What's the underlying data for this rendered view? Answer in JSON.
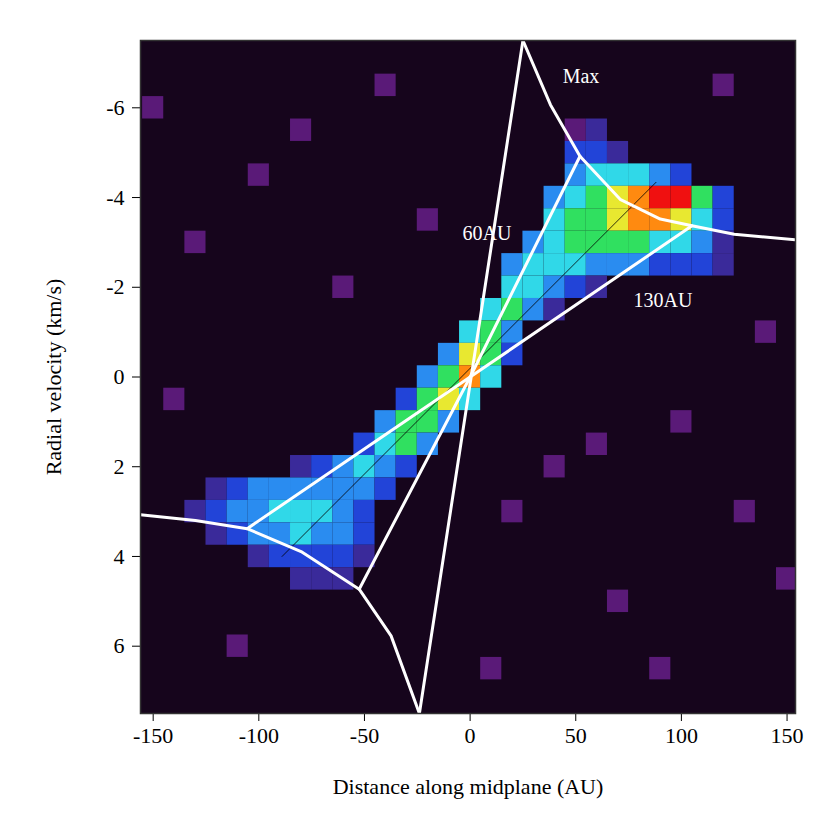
{
  "chart_data": {
    "type": "heatmap",
    "xlabel": "Distance along midplane (AU)",
    "ylabel": "Radial velocity (km/s)",
    "xlim": [
      -156,
      154
    ],
    "xticks": [
      -150,
      -100,
      -50,
      0,
      50,
      100,
      150
    ],
    "ylim": [
      -7.5,
      7.5
    ],
    "yticks": [
      -6,
      -4,
      -2,
      0,
      2,
      4,
      6
    ],
    "cells": {
      "width": 10,
      "height": 0.5,
      "zlim": [
        0,
        9
      ],
      "points": [
        [
          50,
          -5.5,
          1
        ],
        [
          60,
          -5.5,
          2
        ],
        [
          50,
          -5,
          3
        ],
        [
          60,
          -5,
          3
        ],
        [
          70,
          -5,
          2
        ],
        [
          50,
          -4.5,
          4
        ],
        [
          60,
          -4.5,
          5
        ],
        [
          70,
          -4.5,
          5
        ],
        [
          80,
          -4.5,
          5
        ],
        [
          90,
          -4.5,
          4
        ],
        [
          100,
          -4.5,
          3
        ],
        [
          40,
          -4,
          4
        ],
        [
          50,
          -4,
          5
        ],
        [
          60,
          -4,
          6
        ],
        [
          70,
          -4,
          7
        ],
        [
          80,
          -4,
          8
        ],
        [
          90,
          -4,
          9
        ],
        [
          100,
          -4,
          9
        ],
        [
          110,
          -4,
          6
        ],
        [
          120,
          -4,
          3
        ],
        [
          40,
          -3.5,
          5
        ],
        [
          50,
          -3.5,
          6
        ],
        [
          60,
          -3.5,
          6
        ],
        [
          70,
          -3.5,
          7
        ],
        [
          80,
          -3.5,
          8
        ],
        [
          90,
          -3.5,
          8
        ],
        [
          100,
          -3.5,
          7
        ],
        [
          110,
          -3.5,
          5
        ],
        [
          120,
          -3.5,
          3
        ],
        [
          30,
          -3,
          4
        ],
        [
          40,
          -3,
          5
        ],
        [
          50,
          -3,
          6
        ],
        [
          60,
          -3,
          6
        ],
        [
          70,
          -3,
          6
        ],
        [
          80,
          -3,
          6
        ],
        [
          90,
          -3,
          5
        ],
        [
          100,
          -3,
          5
        ],
        [
          110,
          -3,
          4
        ],
        [
          120,
          -3,
          2
        ],
        [
          20,
          -2.5,
          4
        ],
        [
          30,
          -2.5,
          5
        ],
        [
          40,
          -2.5,
          5
        ],
        [
          50,
          -2.5,
          5
        ],
        [
          60,
          -2.5,
          4
        ],
        [
          70,
          -2.5,
          4
        ],
        [
          80,
          -2.5,
          4
        ],
        [
          90,
          -2.5,
          3
        ],
        [
          100,
          -2.5,
          3
        ],
        [
          110,
          -2.5,
          3
        ],
        [
          120,
          -2.5,
          2
        ],
        [
          20,
          -2,
          5
        ],
        [
          30,
          -2,
          5
        ],
        [
          40,
          -2,
          4
        ],
        [
          50,
          -2,
          3
        ],
        [
          60,
          -2,
          2
        ],
        [
          10,
          -1.5,
          5
        ],
        [
          20,
          -1.5,
          6
        ],
        [
          30,
          -1.5,
          4
        ],
        [
          40,
          -1.5,
          2
        ],
        [
          0,
          -1,
          5
        ],
        [
          10,
          -1,
          6
        ],
        [
          20,
          -1,
          4
        ],
        [
          -10,
          -0.5,
          4
        ],
        [
          0,
          -0.5,
          7
        ],
        [
          10,
          -0.5,
          6
        ],
        [
          20,
          -0.5,
          3
        ],
        [
          -20,
          0,
          4
        ],
        [
          -10,
          0,
          6
        ],
        [
          0,
          0,
          8
        ],
        [
          10,
          0,
          5
        ],
        [
          -30,
          0.5,
          3
        ],
        [
          -20,
          0.5,
          6
        ],
        [
          -10,
          0.5,
          7
        ],
        [
          0,
          0.5,
          5
        ],
        [
          -40,
          1,
          4
        ],
        [
          -30,
          1,
          6
        ],
        [
          -20,
          1,
          6
        ],
        [
          -10,
          1,
          4
        ],
        [
          -50,
          1.5,
          3
        ],
        [
          -40,
          1.5,
          5
        ],
        [
          -30,
          1.5,
          6
        ],
        [
          -20,
          1.5,
          4
        ],
        [
          -80,
          2,
          2
        ],
        [
          -70,
          2,
          3
        ],
        [
          -60,
          2,
          4
        ],
        [
          -50,
          2,
          5
        ],
        [
          -40,
          2,
          4
        ],
        [
          -30,
          2,
          3
        ],
        [
          -120,
          2.5,
          2
        ],
        [
          -110,
          2.5,
          3
        ],
        [
          -100,
          2.5,
          4
        ],
        [
          -90,
          2.5,
          4
        ],
        [
          -80,
          2.5,
          4
        ],
        [
          -70,
          2.5,
          4
        ],
        [
          -60,
          2.5,
          4
        ],
        [
          -50,
          2.5,
          4
        ],
        [
          -40,
          2.5,
          3
        ],
        [
          -130,
          3,
          2
        ],
        [
          -120,
          3,
          3
        ],
        [
          -110,
          3,
          4
        ],
        [
          -100,
          3,
          4
        ],
        [
          -90,
          3,
          5
        ],
        [
          -80,
          3,
          5
        ],
        [
          -70,
          3,
          5
        ],
        [
          -60,
          3,
          4
        ],
        [
          -50,
          3,
          3
        ],
        [
          -120,
          3.5,
          2
        ],
        [
          -110,
          3.5,
          3
        ],
        [
          -100,
          3.5,
          4
        ],
        [
          -90,
          3.5,
          4
        ],
        [
          -80,
          3.5,
          5
        ],
        [
          -70,
          3.5,
          4
        ],
        [
          -60,
          3.5,
          4
        ],
        [
          -50,
          3.5,
          3
        ],
        [
          -100,
          4,
          2
        ],
        [
          -90,
          4,
          3
        ],
        [
          -80,
          4,
          3
        ],
        [
          -70,
          4,
          3
        ],
        [
          -60,
          4,
          3
        ],
        [
          -50,
          4,
          2
        ],
        [
          -80,
          4.5,
          2
        ],
        [
          -70,
          4.5,
          2
        ],
        [
          -60,
          4.5,
          2
        ],
        [
          -130,
          -3,
          1
        ],
        [
          -100,
          -4.5,
          1
        ],
        [
          -80,
          -5.5,
          1
        ],
        [
          -60,
          -2,
          1
        ],
        [
          20,
          3,
          1
        ],
        [
          40,
          2,
          1
        ],
        [
          70,
          5,
          1
        ],
        [
          100,
          1,
          1
        ],
        [
          130,
          3,
          1
        ],
        [
          140,
          -1,
          1
        ],
        [
          -140,
          0.5,
          1
        ],
        [
          -110,
          6,
          1
        ],
        [
          -40,
          -6.5,
          1
        ],
        [
          10,
          6.5,
          1
        ],
        [
          120,
          -6.5,
          1
        ],
        [
          -150,
          -6,
          1
        ],
        [
          90,
          6.5,
          1
        ],
        [
          150,
          4.5,
          1
        ],
        [
          -20,
          -3.5,
          1
        ],
        [
          60,
          1.5,
          1
        ]
      ]
    },
    "lines": [
      {
        "color": "#000000",
        "points": [
          [
            -89,
            4
          ],
          [
            88,
            -4.34
          ]
        ]
      },
      {
        "color": "#ffffff",
        "points": [
          [
            -24,
            7.5
          ],
          [
            25,
            -7.5
          ]
        ]
      },
      {
        "color": "#ffffff",
        "points": [
          [
            -52.5,
            4.73
          ],
          [
            0,
            0
          ],
          [
            52,
            -4.92
          ]
        ]
      },
      {
        "color": "#ffffff",
        "points": [
          [
            -105.5,
            3.38
          ],
          [
            0,
            0
          ],
          [
            105,
            -3.37
          ]
        ]
      },
      {
        "color": "#ffffff",
        "points": [
          [
            25,
            -7.5
          ],
          [
            38,
            -6.07
          ],
          [
            52,
            -4.92
          ],
          [
            71,
            -3.96
          ],
          [
            90,
            -3.52
          ],
          [
            105,
            -3.37
          ],
          [
            125,
            -3.18
          ],
          [
            154,
            -3.06
          ]
        ]
      },
      {
        "color": "#ffffff",
        "points": [
          [
            -156,
            3.07
          ],
          [
            -130,
            3.2
          ],
          [
            -105.5,
            3.38
          ],
          [
            -80,
            3.89
          ],
          [
            -52.5,
            4.73
          ],
          [
            -37.4,
            5.77
          ],
          [
            -24,
            7.5
          ]
        ]
      }
    ],
    "annotations": [
      {
        "text": "Max",
        "x": 52.5,
        "y": -6.69
      },
      {
        "text": "60AU",
        "x": 8,
        "y": -3.2
      },
      {
        "text": "130AU",
        "x": 91.3,
        "y": -1.7
      }
    ]
  }
}
